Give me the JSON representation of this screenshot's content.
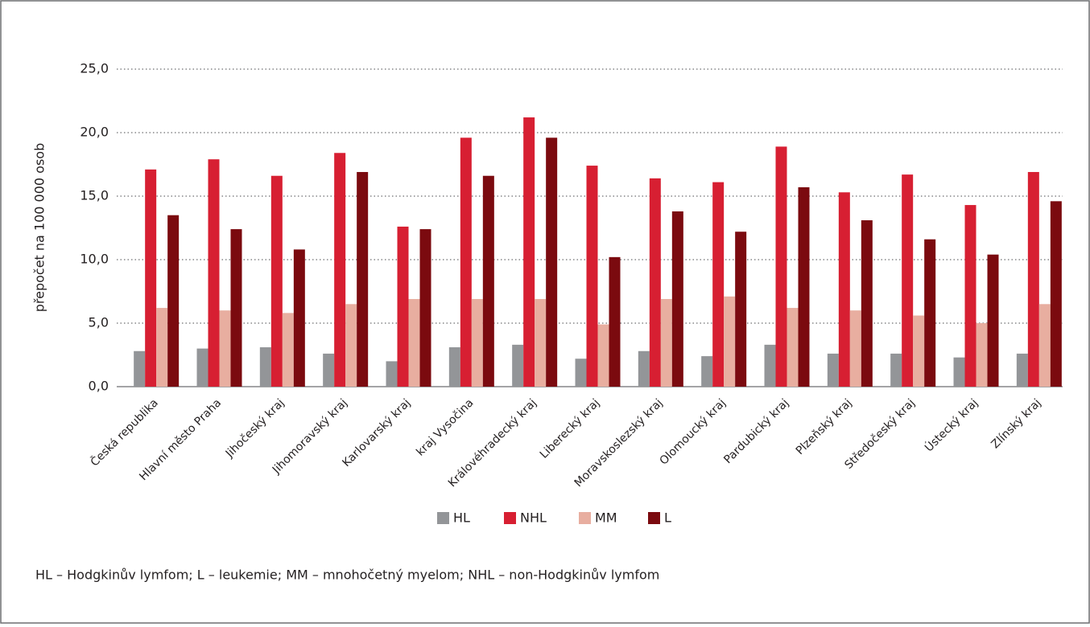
{
  "chart_data": {
    "type": "bar",
    "y_label": "přepočet na 100 000 osob",
    "footnote": "HL – Hodgkinův lymfom; L – leukemie; MM – mnohočetný myelom; NHL – non-Hodgkinův lymfom",
    "categories": [
      "Česká republika",
      "Hlavní město Praha",
      "Jihočeský kraj",
      "Jihomoravský kraj",
      "Karlovarský kraj",
      "kraj Vysočina",
      "Královéhradecký kraj",
      "Liberecký kraj",
      "Moravskoslezský kraj",
      "Olomoucký kraj",
      "Pardubický kraj",
      "Plzeňský kraj",
      "Středočeský kraj",
      "Ústecký kraj",
      "Zlínský kraj"
    ],
    "series": [
      {
        "name": "HL",
        "color": "#939598",
        "values": [
          2.8,
          3.0,
          3.1,
          2.6,
          2.0,
          3.1,
          3.3,
          2.2,
          2.8,
          2.4,
          3.3,
          2.6,
          2.6,
          2.3,
          2.6
        ]
      },
      {
        "name": "NHL",
        "color": "#d71f32",
        "values": [
          17.1,
          17.9,
          16.6,
          18.4,
          12.6,
          19.6,
          21.2,
          17.4,
          16.4,
          16.1,
          18.9,
          15.3,
          16.7,
          14.3,
          16.9
        ]
      },
      {
        "name": "MM",
        "color": "#e8aea0",
        "values": [
          6.2,
          6.0,
          5.8,
          6.5,
          6.9,
          6.9,
          6.9,
          4.9,
          6.9,
          7.1,
          6.2,
          6.0,
          5.6,
          5.0,
          6.5
        ]
      },
      {
        "name": "L",
        "color": "#7b0a0f",
        "values": [
          13.5,
          12.4,
          10.8,
          16.9,
          12.4,
          16.6,
          19.6,
          10.2,
          13.8,
          12.2,
          15.7,
          13.1,
          11.6,
          10.4,
          14.6
        ]
      }
    ],
    "ylim": [
      0,
      25
    ],
    "yticks": [
      {
        "value": 0,
        "label": "0,0"
      },
      {
        "value": 5,
        "label": "5,0"
      },
      {
        "value": 10,
        "label": "10,0"
      },
      {
        "value": 15,
        "label": "15,0"
      },
      {
        "value": 20,
        "label": "20,0"
      },
      {
        "value": 25,
        "label": "25,0"
      }
    ],
    "grid": true,
    "legend": "bottom"
  }
}
